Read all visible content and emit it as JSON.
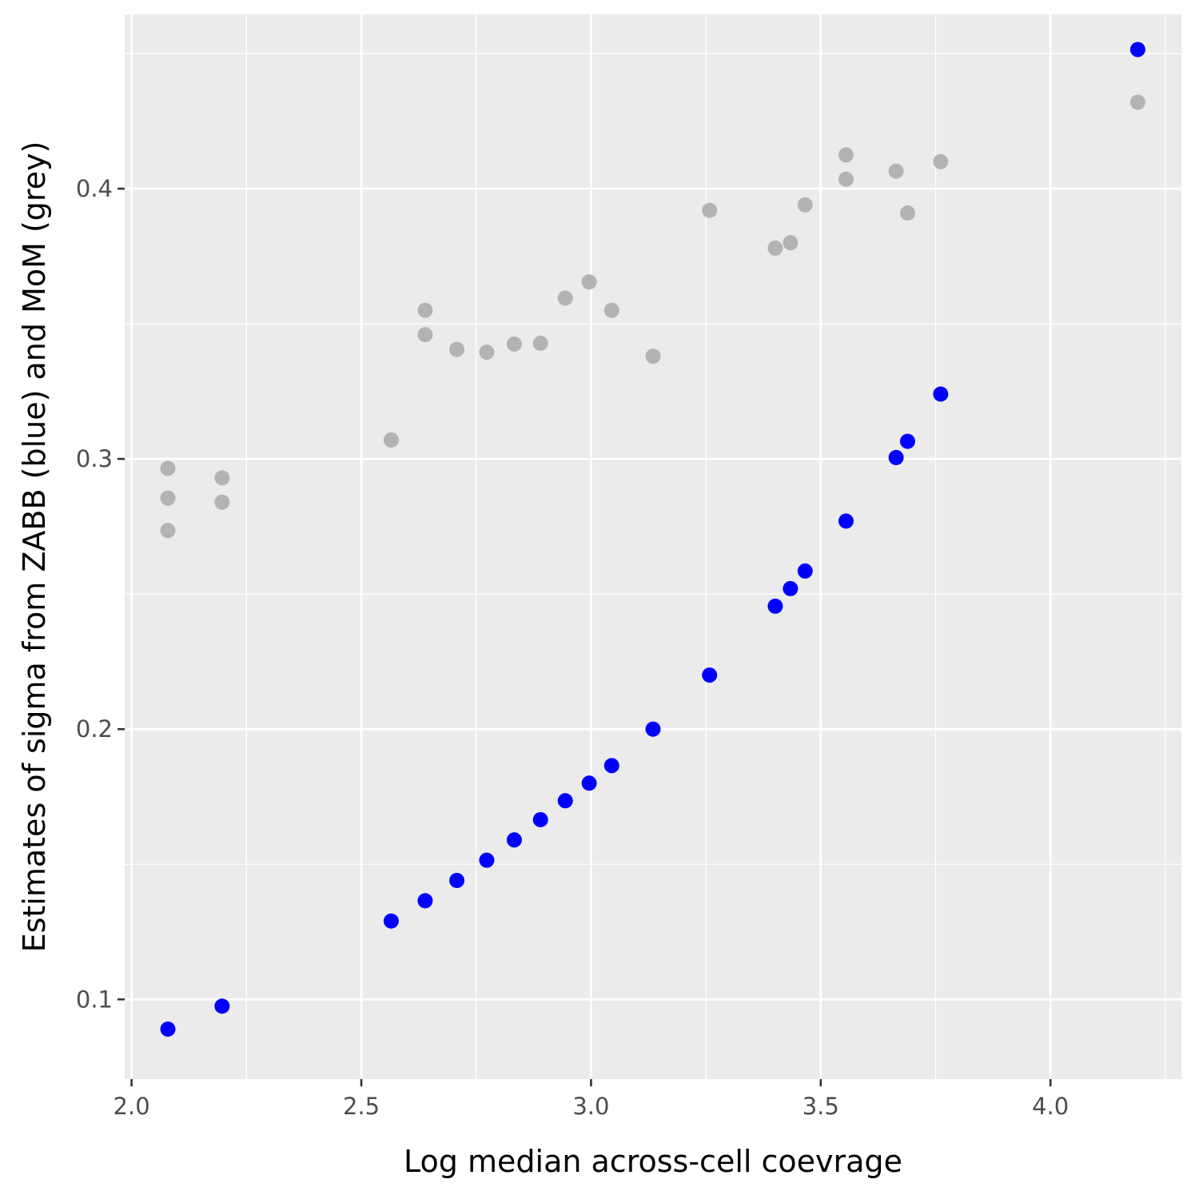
{
  "chart_data": {
    "type": "scatter",
    "title": "",
    "xlabel": "Log median across-cell coevrage",
    "ylabel": "Estimates of sigma from ZABB (blue) and MoM (grey)",
    "xlim": [
      1.985,
      4.285
    ],
    "ylim": [
      0.0705,
      0.4645
    ],
    "x_ticks": [
      2.0,
      2.5,
      3.0,
      3.5,
      4.0
    ],
    "x_tick_labels": [
      "2.0",
      "2.5",
      "3.0",
      "3.5",
      "4.0"
    ],
    "y_ticks": [
      0.1,
      0.2,
      0.3,
      0.4
    ],
    "y_tick_labels": [
      "0.1",
      "0.2",
      "0.3",
      "0.4"
    ],
    "grid": true,
    "legend": "none",
    "panel_background": "#ebebeb",
    "grid_color": "#ffffff",
    "series": [
      {
        "color": "#b3b3b3",
        "points": [
          [
            2.079,
            0.2965
          ],
          [
            2.079,
            0.2855
          ],
          [
            2.079,
            0.2735
          ],
          [
            2.197,
            0.293
          ],
          [
            2.197,
            0.284
          ],
          [
            2.565,
            0.307
          ],
          [
            2.639,
            0.355
          ],
          [
            2.639,
            0.346
          ],
          [
            2.708,
            0.3405
          ],
          [
            2.773,
            0.3395
          ],
          [
            2.833,
            0.3425
          ],
          [
            2.89,
            0.3428
          ],
          [
            2.944,
            0.3595
          ],
          [
            2.996,
            0.3655
          ],
          [
            3.045,
            0.355
          ],
          [
            3.135,
            0.338
          ],
          [
            3.258,
            0.392
          ],
          [
            3.401,
            0.378
          ],
          [
            3.434,
            0.38
          ],
          [
            3.466,
            0.394
          ],
          [
            3.555,
            0.4125
          ],
          [
            3.555,
            0.4035
          ],
          [
            3.664,
            0.4065
          ],
          [
            3.689,
            0.391
          ],
          [
            3.761,
            0.41
          ],
          [
            4.19,
            0.432
          ]
        ]
      },
      {
        "color": "#0000ff",
        "points": [
          [
            2.079,
            0.089
          ],
          [
            2.197,
            0.0975
          ],
          [
            2.565,
            0.129
          ],
          [
            2.639,
            0.1365
          ],
          [
            2.708,
            0.144
          ],
          [
            2.773,
            0.1515
          ],
          [
            2.833,
            0.159
          ],
          [
            2.89,
            0.1665
          ],
          [
            2.944,
            0.1735
          ],
          [
            2.996,
            0.18
          ],
          [
            3.045,
            0.1865
          ],
          [
            3.135,
            0.2
          ],
          [
            3.258,
            0.22
          ],
          [
            3.401,
            0.2455
          ],
          [
            3.434,
            0.252
          ],
          [
            3.466,
            0.2585
          ],
          [
            3.555,
            0.277
          ],
          [
            3.664,
            0.3005
          ],
          [
            3.689,
            0.3065
          ],
          [
            3.761,
            0.324
          ],
          [
            4.19,
            0.4515
          ]
        ]
      }
    ]
  }
}
